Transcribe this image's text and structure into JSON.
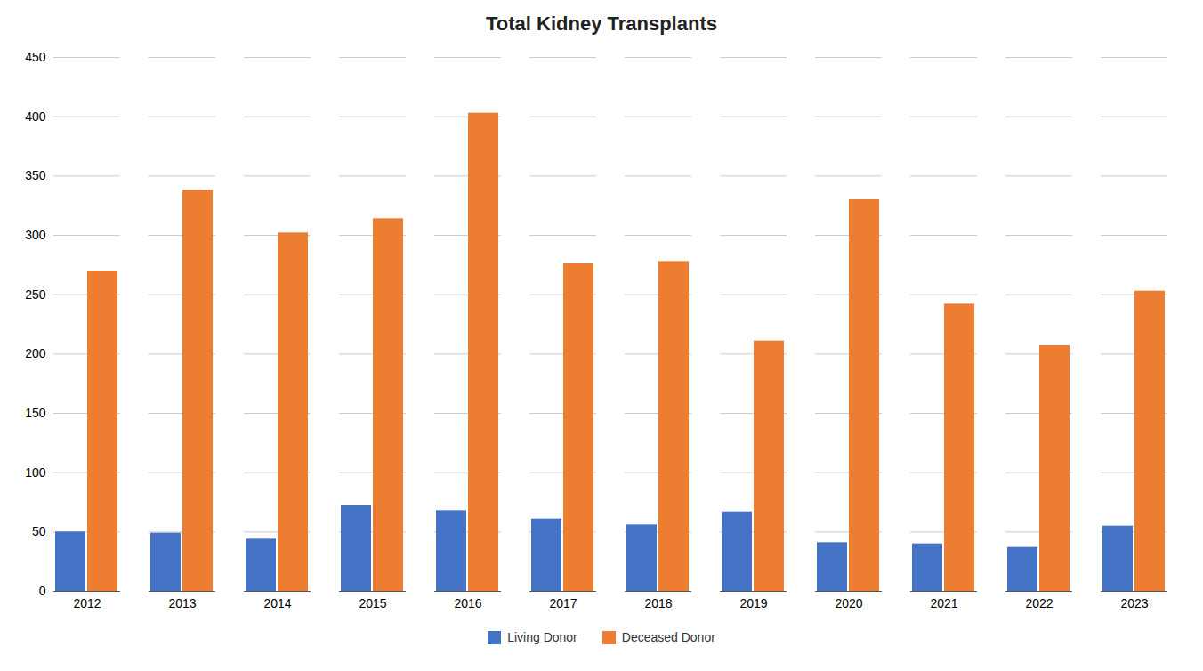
{
  "chart_data": {
    "type": "bar",
    "title": "Total Kidney Transplants",
    "categories": [
      "2012",
      "2013",
      "2014",
      "2015",
      "2016",
      "2017",
      "2018",
      "2019",
      "2020",
      "2021",
      "2022",
      "2023"
    ],
    "series": [
      {
        "name": "Living Donor",
        "color": "#4472C4",
        "values": [
          50,
          49,
          44,
          72,
          68,
          61,
          56,
          67,
          41,
          40,
          37,
          55
        ]
      },
      {
        "name": "Deceased Donor",
        "color": "#ED7D31",
        "values": [
          270,
          338,
          302,
          314,
          403,
          276,
          278,
          211,
          330,
          242,
          207,
          253
        ]
      }
    ],
    "ylim": [
      0,
      450
    ],
    "yticks": [
      0,
      50,
      100,
      150,
      200,
      250,
      300,
      350,
      400,
      450
    ],
    "grid": true,
    "legend": "bottom"
  }
}
